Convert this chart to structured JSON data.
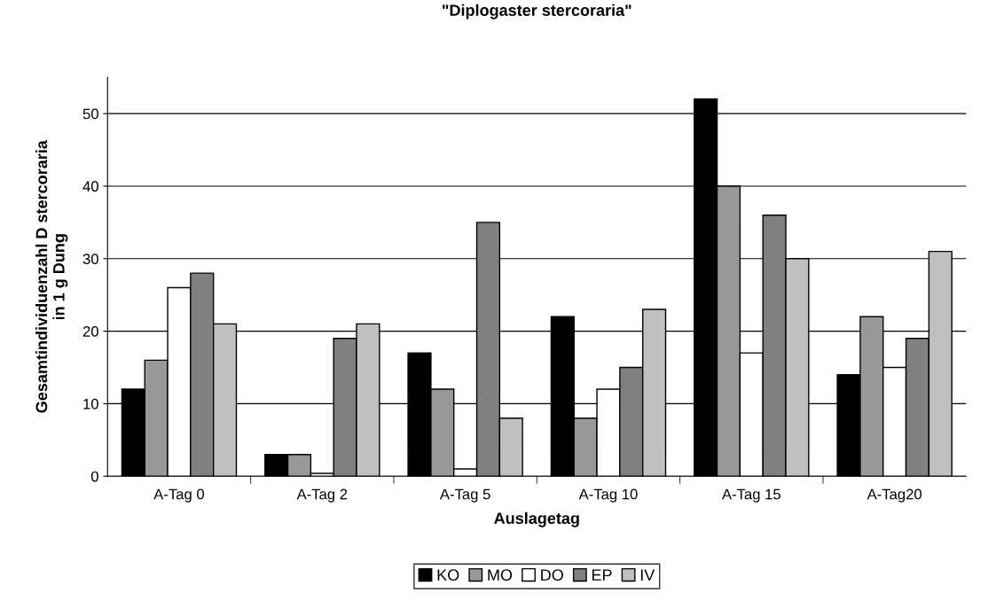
{
  "chart_data": {
    "type": "bar",
    "title": "\"Diplogaster stercoraria\"",
    "xlabel": "Auslagetag",
    "ylabel": "Gesamtindividuenzahl D stercoraria\nin 1 g Dung",
    "categories": [
      "A-Tag 0",
      "A-Tag 2",
      "A-Tag 5",
      "A-Tag 10",
      "A-Tag 15",
      "A-Tag20"
    ],
    "series": [
      {
        "name": "KO",
        "color": "#000000",
        "values": [
          12,
          3,
          17,
          22,
          52,
          14
        ]
      },
      {
        "name": "MO",
        "color": "#999999",
        "values": [
          16,
          3,
          12,
          8,
          40,
          22
        ]
      },
      {
        "name": "DO",
        "color": "#ffffff",
        "values": [
          26,
          0.4,
          1,
          12,
          17,
          15
        ]
      },
      {
        "name": "EP",
        "color": "#808080",
        "values": [
          28,
          19,
          35,
          15,
          36,
          19
        ]
      },
      {
        "name": "IV",
        "color": "#c0c0c0",
        "values": [
          21,
          21,
          8,
          23,
          30,
          31
        ]
      }
    ],
    "ylim": [
      0,
      55
    ],
    "yticks": [
      0,
      10,
      20,
      30,
      40,
      50
    ],
    "grid": "y",
    "legend": "bottom"
  }
}
